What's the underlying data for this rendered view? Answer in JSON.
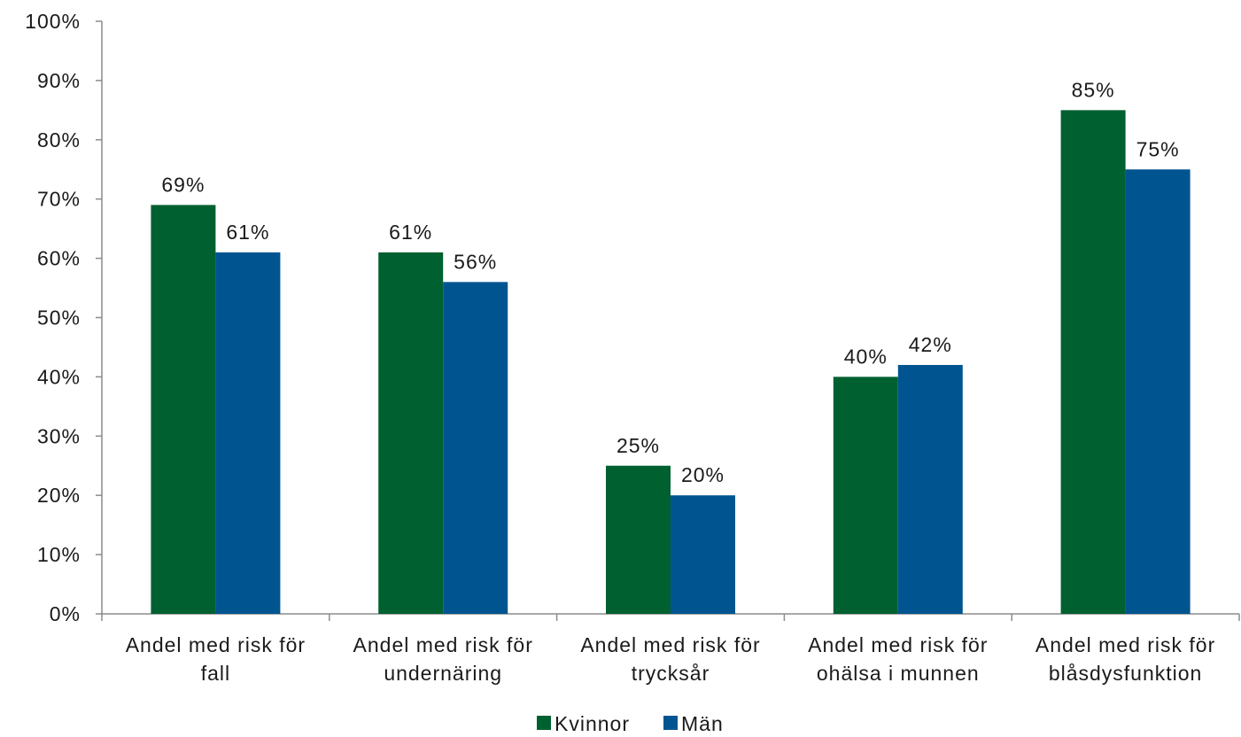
{
  "chart_data": {
    "type": "bar",
    "title": "",
    "xlabel": "",
    "ylabel": "",
    "ylim": [
      0,
      100
    ],
    "y_ticks": [
      "0%",
      "10%",
      "20%",
      "30%",
      "40%",
      "50%",
      "60%",
      "70%",
      "80%",
      "90%",
      "100%"
    ],
    "y_tick_values": [
      0,
      10,
      20,
      30,
      40,
      50,
      60,
      70,
      80,
      90,
      100
    ],
    "grid": false,
    "legend_position": "bottom-center",
    "categories": [
      [
        "Andel med risk för",
        "fall"
      ],
      [
        "Andel med risk för",
        "undernäring"
      ],
      [
        "Andel med risk för",
        "trycksår"
      ],
      [
        "Andel med risk för",
        "ohälsa i munnen"
      ],
      [
        "Andel med risk för",
        "blåsdysfunktion"
      ]
    ],
    "series": [
      {
        "name": "Kvinnor",
        "color": "#006030",
        "values": [
          69,
          61,
          25,
          40,
          85
        ],
        "labels": [
          "69%",
          "61%",
          "25%",
          "40%",
          "85%"
        ]
      },
      {
        "name": "Män",
        "color": "#005590",
        "values": [
          61,
          56,
          20,
          42,
          75
        ],
        "labels": [
          "61%",
          "56%",
          "20%",
          "42%",
          "75%"
        ]
      }
    ]
  }
}
